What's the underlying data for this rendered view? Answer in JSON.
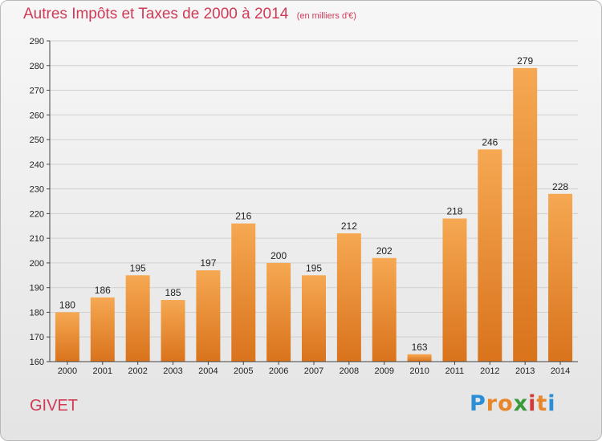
{
  "title": "Autres Impôts et Taxes de 2000 à 2014",
  "subtitle": "(en milliers d'€)",
  "commune": "GIVET",
  "logo": {
    "letters": [
      {
        "ch": "P",
        "color": "#2a8fd6"
      },
      {
        "ch": "r",
        "color": "#e8862a"
      },
      {
        "ch": "o",
        "color": "#e8862a"
      },
      {
        "ch": "x",
        "color": "#3a9a3a"
      },
      {
        "ch": "i",
        "color": "#d43a3a"
      },
      {
        "ch": "t",
        "color": "#e8862a"
      },
      {
        "ch": "i",
        "color": "#2a8fd6"
      }
    ]
  },
  "colors": {
    "accent": "#d03a56",
    "bar_light": "#f6a852",
    "bar_dark": "#d9731c",
    "grid": "#cfcfcf"
  },
  "chart_data": {
    "type": "bar",
    "categories": [
      "2000",
      "2001",
      "2002",
      "2003",
      "2004",
      "2005",
      "2006",
      "2007",
      "2008",
      "2009",
      "2010",
      "2011",
      "2012",
      "2013",
      "2014"
    ],
    "values": [
      180,
      186,
      195,
      185,
      197,
      216,
      200,
      195,
      212,
      202,
      163,
      218,
      246,
      279,
      228
    ],
    "data_labels": [
      "180",
      "186",
      "195",
      "185",
      "197",
      "216",
      "200",
      "195",
      "212",
      "202",
      "163",
      "218",
      "246",
      "279",
      "228"
    ],
    "y_ticks": [
      "160",
      "170",
      "180",
      "190",
      "200",
      "210",
      "220",
      "230",
      "240",
      "250",
      "260",
      "270",
      "280",
      "290"
    ],
    "ylim": [
      160,
      290
    ],
    "grid": true,
    "legend": "none"
  }
}
